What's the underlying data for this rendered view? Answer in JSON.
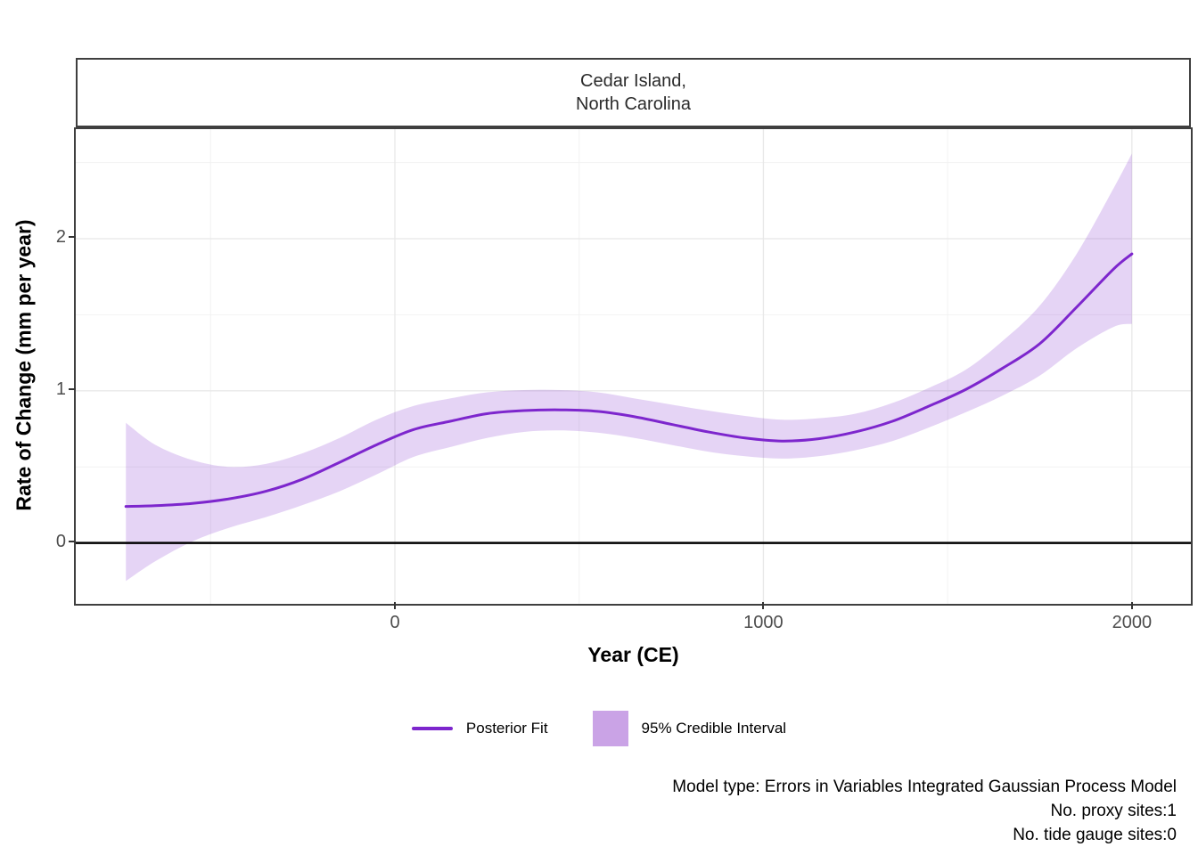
{
  "chart_data": {
    "type": "line",
    "strip_title": "Cedar Island,\nNorth Carolina",
    "xlabel": "Year (CE)",
    "ylabel": "Rate of Change (mm per year)",
    "xlim": [
      -866,
      2160
    ],
    "ylim": [
      -0.4,
      2.72
    ],
    "x_ticks": [
      0,
      1000,
      2000
    ],
    "x_tick_labels": [
      "0",
      "1000",
      "2000"
    ],
    "x_minor": [
      -500,
      500,
      1500
    ],
    "y_ticks": [
      0,
      1,
      2
    ],
    "y_tick_labels": [
      "0",
      "1",
      "2"
    ],
    "y_minor": [
      0.5,
      1.5,
      2.5
    ],
    "hline": 0,
    "series": [
      {
        "name": "Posterior Fit",
        "x": [
          -730,
          -650,
          -550,
          -450,
          -350,
          -250,
          -150,
          -50,
          50,
          150,
          250,
          350,
          450,
          550,
          650,
          750,
          850,
          950,
          1050,
          1150,
          1250,
          1350,
          1450,
          1550,
          1650,
          1750,
          1850,
          1950,
          2000
        ],
        "y": [
          0.24,
          0.245,
          0.26,
          0.29,
          0.34,
          0.42,
          0.53,
          0.645,
          0.745,
          0.8,
          0.85,
          0.87,
          0.875,
          0.865,
          0.83,
          0.78,
          0.73,
          0.69,
          0.67,
          0.685,
          0.73,
          0.8,
          0.9,
          1.01,
          1.15,
          1.31,
          1.55,
          1.8,
          1.9
        ]
      }
    ],
    "ribbon": {
      "name": "95% Credible Interval",
      "x": [
        -730,
        -650,
        -550,
        -450,
        -350,
        -250,
        -150,
        -50,
        50,
        150,
        250,
        350,
        450,
        550,
        650,
        750,
        850,
        950,
        1050,
        1150,
        1250,
        1350,
        1450,
        1550,
        1650,
        1750,
        1850,
        1950,
        2000
      ],
      "lower": [
        -0.25,
        -0.12,
        0.01,
        0.1,
        0.17,
        0.25,
        0.34,
        0.45,
        0.565,
        0.63,
        0.69,
        0.73,
        0.74,
        0.725,
        0.69,
        0.645,
        0.6,
        0.57,
        0.555,
        0.57,
        0.61,
        0.67,
        0.76,
        0.86,
        0.97,
        1.1,
        1.28,
        1.42,
        1.44
      ],
      "upper": [
        0.79,
        0.645,
        0.545,
        0.5,
        0.52,
        0.59,
        0.69,
        0.81,
        0.9,
        0.95,
        0.99,
        1.005,
        1.005,
        0.99,
        0.95,
        0.91,
        0.87,
        0.835,
        0.81,
        0.82,
        0.85,
        0.92,
        1.02,
        1.14,
        1.33,
        1.56,
        1.9,
        2.33,
        2.56
      ]
    },
    "colors": {
      "line": "#7D26CD",
      "ribbon": "rgba(125,38,205,0.2)",
      "legend_fill": "#CAA3E6",
      "hline": "#000000",
      "grid_major": "#E8E8E8",
      "grid_minor": "#F2F2F2",
      "tick_label": "#4D4D4D",
      "border": "#3F3F3F"
    },
    "grid": true,
    "legend_position": "bottom"
  },
  "legend": {
    "items": [
      {
        "type": "line",
        "label": "Posterior Fit"
      },
      {
        "type": "fill",
        "label": "95% Credible Interval"
      }
    ]
  },
  "caption": {
    "lines": [
      "Model type: Errors in Variables Integrated Gaussian Process Model",
      "No. proxy sites:1",
      "No. tide gauge sites:0"
    ]
  }
}
